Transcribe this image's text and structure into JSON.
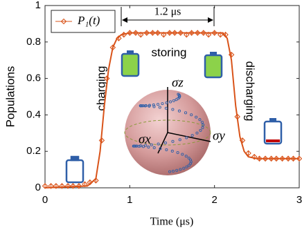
{
  "chart_data": {
    "type": "scatter",
    "xlabel": "Time (μs)",
    "ylabel": "Populations",
    "xlim": [
      0,
      3
    ],
    "xticks": [
      0,
      1,
      2,
      3
    ],
    "ylim": [
      0,
      1
    ],
    "yticks": [
      0,
      0.2,
      0.4,
      0.6,
      0.8,
      1
    ],
    "grid": false,
    "legend": "upper left",
    "series": [
      {
        "name": "P₁(t)",
        "color": "#d95319",
        "x": [
          0,
          0.07,
          0.13,
          0.2,
          0.27,
          0.33,
          0.4,
          0.47,
          0.53,
          0.6,
          0.67,
          0.73,
          0.8,
          0.87,
          0.93,
          1.0,
          1.07,
          1.13,
          1.2,
          1.27,
          1.33,
          1.4,
          1.47,
          1.53,
          1.6,
          1.67,
          1.73,
          1.8,
          1.87,
          1.93,
          2.0,
          2.07,
          2.13,
          2.2,
          2.27,
          2.33,
          2.4,
          2.47,
          2.53,
          2.6,
          2.67,
          2.73,
          2.8,
          2.87,
          2.93,
          3.0
        ],
        "values": [
          0.01,
          0.01,
          0.01,
          0.01,
          0.01,
          0.01,
          0.01,
          0.02,
          0.03,
          0.04,
          0.26,
          0.6,
          0.77,
          0.82,
          0.84,
          0.85,
          0.85,
          0.84,
          0.85,
          0.85,
          0.85,
          0.84,
          0.85,
          0.85,
          0.85,
          0.84,
          0.85,
          0.85,
          0.85,
          0.84,
          0.85,
          0.84,
          0.84,
          0.73,
          0.39,
          0.26,
          0.19,
          0.17,
          0.16,
          0.16,
          0.16,
          0.16,
          0.16,
          0.16,
          0.16,
          0.16
        ],
        "errors": [
          0.015,
          0.015,
          0.015,
          0.015,
          0.015,
          0.015,
          0.015,
          0.015,
          0.015,
          0.015,
          0.015,
          0.015,
          0.015,
          0.015,
          0.015,
          0.015,
          0.015,
          0.015,
          0.015,
          0.015,
          0.015,
          0.015,
          0.015,
          0.015,
          0.015,
          0.015,
          0.015,
          0.015,
          0.015,
          0.015,
          0.015,
          0.015,
          0.015,
          0.015,
          0.015,
          0.015,
          0.015,
          0.015,
          0.015,
          0.015,
          0.015,
          0.015,
          0.015,
          0.015,
          0.015,
          0.015
        ]
      }
    ],
    "fit_line": {
      "color": "#d95319",
      "x": [
        0,
        0.5,
        0.6,
        0.65,
        0.7,
        0.75,
        0.8,
        0.85,
        0.9,
        1.0,
        2.1,
        2.15,
        2.2,
        2.25,
        2.3,
        2.35,
        2.4,
        2.5,
        3.0
      ],
      "values": [
        0,
        0.01,
        0.05,
        0.2,
        0.45,
        0.65,
        0.77,
        0.82,
        0.84,
        0.85,
        0.85,
        0.82,
        0.7,
        0.45,
        0.28,
        0.2,
        0.17,
        0.16,
        0.16
      ]
    },
    "annotations": {
      "duration": "1.2 μs",
      "storing": "storing",
      "charging": "charging",
      "discharging": "discharging",
      "sigma_z": "σz",
      "sigma_x": "σx",
      "sigma_y": "σy"
    }
  }
}
